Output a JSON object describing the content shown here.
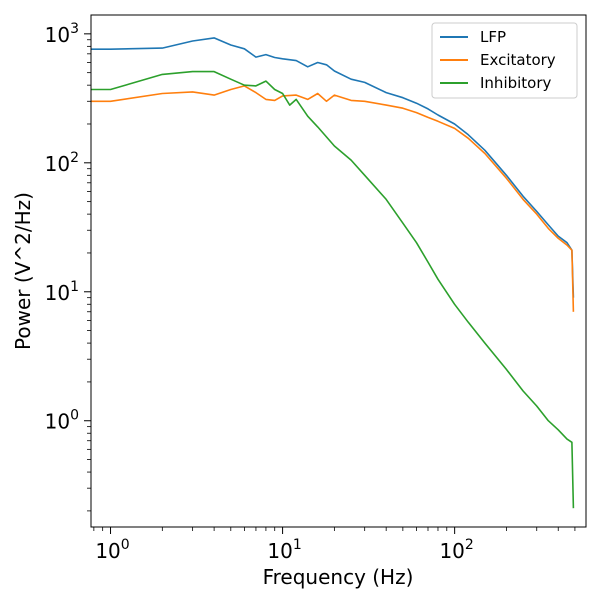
{
  "chart_data": {
    "type": "line",
    "xlabel": "Frequency (Hz)",
    "ylabel": "Power (V^2/Hz)",
    "xscale": "log",
    "yscale": "log",
    "xlim": [
      0.77,
      580
    ],
    "ylim": [
      0.15,
      1400
    ],
    "x_ticks": [
      {
        "value": 1,
        "base": "10",
        "exp": "0"
      },
      {
        "value": 10,
        "base": "10",
        "exp": "1"
      },
      {
        "value": 100,
        "base": "10",
        "exp": "2"
      }
    ],
    "y_ticks": [
      {
        "value": 1,
        "base": "10",
        "exp": "0"
      },
      {
        "value": 10,
        "base": "10",
        "exp": "1"
      },
      {
        "value": 100,
        "base": "10",
        "exp": "2"
      },
      {
        "value": 1000,
        "base": "10",
        "exp": "3"
      }
    ],
    "legend": {
      "placement": "top-right"
    },
    "series": [
      {
        "name": "LFP",
        "color": "#1f77b4",
        "points": [
          [
            0.77,
            760
          ],
          [
            1,
            760
          ],
          [
            2,
            775
          ],
          [
            3,
            880
          ],
          [
            4,
            930
          ],
          [
            5,
            820
          ],
          [
            6,
            765
          ],
          [
            7,
            660
          ],
          [
            8,
            690
          ],
          [
            9,
            655
          ],
          [
            10,
            640
          ],
          [
            12,
            620
          ],
          [
            14,
            555
          ],
          [
            16,
            600
          ],
          [
            18,
            575
          ],
          [
            20,
            515
          ],
          [
            25,
            445
          ],
          [
            30,
            420
          ],
          [
            40,
            350
          ],
          [
            50,
            320
          ],
          [
            60,
            290
          ],
          [
            70,
            262
          ],
          [
            80,
            235
          ],
          [
            100,
            200
          ],
          [
            120,
            165
          ],
          [
            150,
            125
          ],
          [
            200,
            80
          ],
          [
            250,
            55
          ],
          [
            300,
            42
          ],
          [
            350,
            33
          ],
          [
            400,
            27
          ],
          [
            450,
            24
          ],
          [
            480,
            21
          ],
          [
            490,
            9
          ]
        ]
      },
      {
        "name": "Excitatory",
        "color": "#ff7f0e",
        "points": [
          [
            0.77,
            300
          ],
          [
            1,
            300
          ],
          [
            2,
            345
          ],
          [
            3,
            355
          ],
          [
            4,
            335
          ],
          [
            5,
            370
          ],
          [
            6,
            395
          ],
          [
            7,
            350
          ],
          [
            8,
            310
          ],
          [
            9,
            305
          ],
          [
            10,
            330
          ],
          [
            12,
            335
          ],
          [
            14,
            310
          ],
          [
            16,
            345
          ],
          [
            18,
            300
          ],
          [
            20,
            335
          ],
          [
            25,
            305
          ],
          [
            30,
            300
          ],
          [
            40,
            280
          ],
          [
            50,
            265
          ],
          [
            60,
            245
          ],
          [
            70,
            225
          ],
          [
            80,
            210
          ],
          [
            100,
            185
          ],
          [
            120,
            155
          ],
          [
            150,
            118
          ],
          [
            200,
            76
          ],
          [
            250,
            52
          ],
          [
            300,
            40
          ],
          [
            350,
            31
          ],
          [
            400,
            26
          ],
          [
            450,
            23
          ],
          [
            480,
            21
          ],
          [
            490,
            7
          ]
        ]
      },
      {
        "name": "Inhibitory",
        "color": "#2ca02c",
        "points": [
          [
            0.77,
            370
          ],
          [
            1,
            370
          ],
          [
            2,
            485
          ],
          [
            3,
            510
          ],
          [
            4,
            510
          ],
          [
            5,
            445
          ],
          [
            6,
            400
          ],
          [
            7,
            395
          ],
          [
            8,
            430
          ],
          [
            9,
            370
          ],
          [
            10,
            345
          ],
          [
            11,
            280
          ],
          [
            12,
            310
          ],
          [
            14,
            230
          ],
          [
            16,
            190
          ],
          [
            20,
            135
          ],
          [
            25,
            105
          ],
          [
            30,
            80
          ],
          [
            40,
            52
          ],
          [
            50,
            34
          ],
          [
            60,
            24
          ],
          [
            70,
            17
          ],
          [
            80,
            12.5
          ],
          [
            100,
            8
          ],
          [
            120,
            5.8
          ],
          [
            150,
            4
          ],
          [
            200,
            2.5
          ],
          [
            250,
            1.7
          ],
          [
            300,
            1.3
          ],
          [
            350,
            1.0
          ],
          [
            400,
            0.85
          ],
          [
            450,
            0.72
          ],
          [
            480,
            0.68
          ],
          [
            490,
            0.21
          ]
        ]
      }
    ]
  }
}
